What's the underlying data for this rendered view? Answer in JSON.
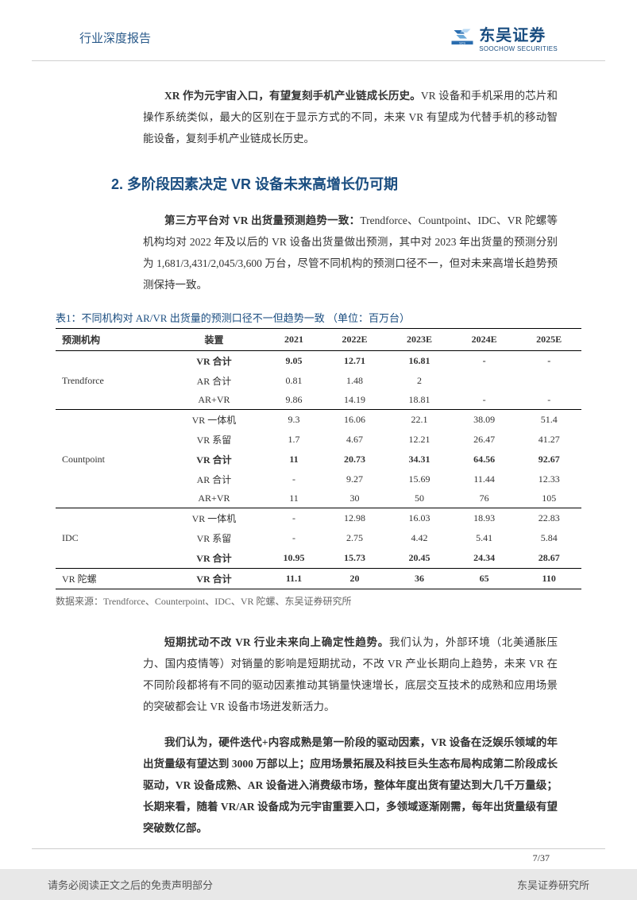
{
  "header": {
    "doc_type": "行业深度报告",
    "logo_cn": "东吴证券",
    "logo_en": "SOOCHOW SECURITIES"
  },
  "para1": {
    "lead": "XR 作为元宇宙入口，有望复刻手机产业链成长历史。",
    "body": "VR 设备和手机采用的芯片和操作系统类似，最大的区别在于显示方式的不同，未来 VR 有望成为代替手机的移动智能设备，复刻手机产业链成长历史。"
  },
  "section": {
    "title": "2.  多阶段因素决定 VR 设备未来高增长仍可期"
  },
  "para2": {
    "lead": "第三方平台对 VR 出货量预测趋势一致：",
    "body": "Trendforce、Countpoint、IDC、VR 陀螺等机构均对 2022 年及以后的 VR 设备出货量做出预测，其中对 2023 年出货量的预测分别为 1,681/3,431/2,045/3,600 万台，尽管不同机构的预测口径不一，但对未来高增长趋势预测保持一致。"
  },
  "table": {
    "caption": "表1：不同机构对 AR/VR 出货量的预测口径不一但趋势一致 （单位：百万台）",
    "headers": [
      "预测机构",
      "装置",
      "2021",
      "2022E",
      "2023E",
      "2024E",
      "2025E"
    ],
    "source": "数据来源：Trendforce、Counterpoint、IDC、VR 陀螺、东吴证券研究所",
    "rows": [
      {
        "org": "",
        "device": "VR 合计",
        "v": [
          "9.05",
          "12.71",
          "16.81",
          "-",
          "-"
        ],
        "bold": true
      },
      {
        "org": "Trendforce",
        "device": "AR 合计",
        "v": [
          "0.81",
          "1.48",
          "2",
          "",
          ""
        ],
        "bold": false
      },
      {
        "org": "",
        "device": "AR+VR",
        "v": [
          "9.86",
          "14.19",
          "18.81",
          "-",
          "-"
        ],
        "bold": false,
        "group_end": true
      },
      {
        "org": "",
        "device": "VR 一体机",
        "v": [
          "9.3",
          "16.06",
          "22.1",
          "38.09",
          "51.4"
        ],
        "bold": false
      },
      {
        "org": "",
        "device": "VR 系留",
        "v": [
          "1.7",
          "4.67",
          "12.21",
          "26.47",
          "41.27"
        ],
        "bold": false
      },
      {
        "org": "Countpoint",
        "device": "VR 合计",
        "v": [
          "11",
          "20.73",
          "34.31",
          "64.56",
          "92.67"
        ],
        "bold": true
      },
      {
        "org": "",
        "device": "AR 合计",
        "v": [
          "-",
          "9.27",
          "15.69",
          "11.44",
          "12.33"
        ],
        "bold": false
      },
      {
        "org": "",
        "device": "AR+VR",
        "v": [
          "11",
          "30",
          "50",
          "76",
          "105"
        ],
        "bold": false,
        "group_end": true
      },
      {
        "org": "",
        "device": "VR 一体机",
        "v": [
          "-",
          "12.98",
          "16.03",
          "18.93",
          "22.83"
        ],
        "bold": false
      },
      {
        "org": "IDC",
        "device": "VR 系留",
        "v": [
          "-",
          "2.75",
          "4.42",
          "5.41",
          "5.84"
        ],
        "bold": false
      },
      {
        "org": "",
        "device": "VR 合计",
        "v": [
          "10.95",
          "15.73",
          "20.45",
          "24.34",
          "28.67"
        ],
        "bold": true,
        "group_end": true
      },
      {
        "org": "VR 陀螺",
        "device": "VR 合计",
        "v": [
          "11.1",
          "20",
          "36",
          "65",
          "110"
        ],
        "bold": true,
        "last": true
      }
    ]
  },
  "para3": {
    "lead": "短期扰动不改 VR 行业未来向上确定性趋势。",
    "body": "我们认为，外部环境（北美通胀压力、国内疫情等）对销量的影响是短期扰动，不改 VR 产业长期向上趋势，未来 VR 在不同阶段都将有不同的驱动因素推动其销量快速增长，底层交互技术的成熟和应用场景的突破都会让 VR 设备市场迸发新活力。"
  },
  "para4": {
    "text": "我们认为，硬件迭代+内容成熟是第一阶段的驱动因素，VR 设备在泛娱乐领域的年出货量级有望达到 3000 万部以上；应用场景拓展及科技巨头生态布局构成第二阶段成长驱动，VR 设备成熟、AR 设备进入消费级市场，整体年度出货有望达到大几千万量级；长期来看，随着 VR/AR 设备成为元宇宙重要入口，多领域逐渐刚需，每年出货量级有望突破数亿部。"
  },
  "footer": {
    "page": "7/37",
    "disclaimer": "请务必阅读正文之后的免责声明部分",
    "institute": "东吴证券研究所"
  },
  "colors": {
    "brand": "#1a4d80",
    "text": "#333333",
    "footer_bg": "#e8e8e8"
  }
}
